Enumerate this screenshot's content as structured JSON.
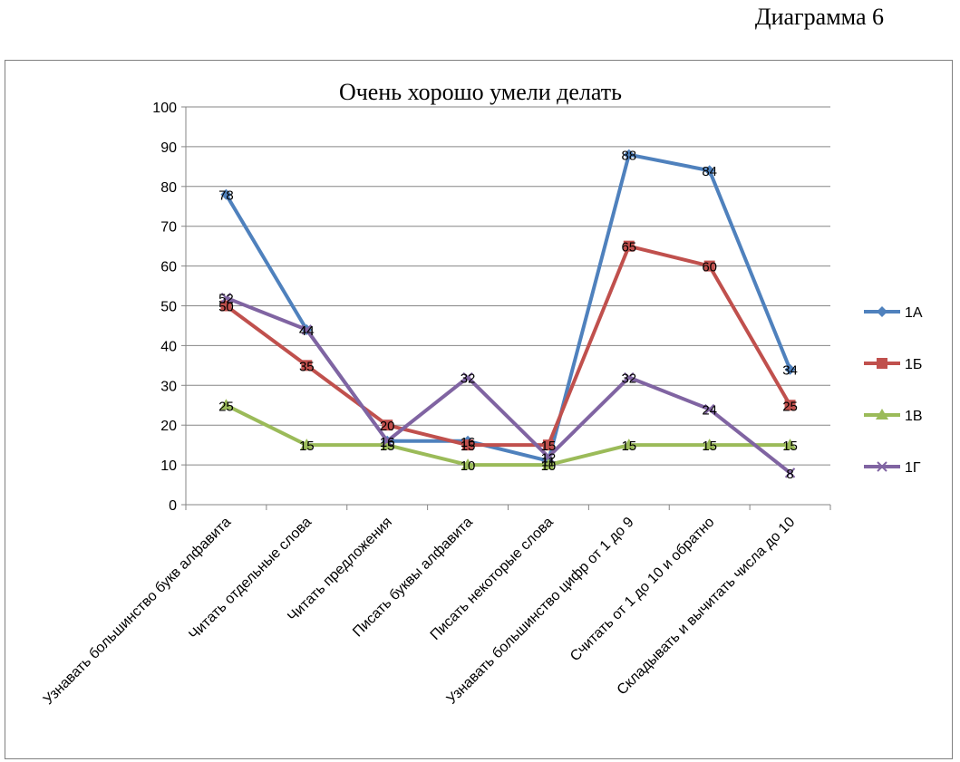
{
  "caption": "Диаграмма 6",
  "chart_data": {
    "type": "line",
    "title": "Очень хорошо умели делать",
    "categories": [
      "Узнавать большинство букв алфавита",
      "Читать отдельные слова",
      "Читать предложения",
      "Писать буквы алфавита",
      "Писать некоторые слова",
      "Узнавать большинство цифр от 1 до 9",
      "Считать от 1 до 10 и обратно",
      "Складывать и вычитать числа до 10"
    ],
    "ylim": [
      0,
      100
    ],
    "yticks": [
      0,
      10,
      20,
      30,
      40,
      50,
      60,
      70,
      80,
      90,
      100
    ],
    "ytick_labels": [
      "0",
      "10",
      "20",
      "30",
      "40",
      "50",
      "60",
      "70",
      "80",
      "90",
      "100"
    ],
    "grid": true,
    "legend": "right",
    "series": [
      {
        "name": "1А",
        "values": [
          78,
          44,
          16,
          16,
          11,
          88,
          84,
          34
        ],
        "labels": [
          "78",
          "44",
          "16",
          "16",
          "11",
          "88",
          "84",
          "34"
        ],
        "color": "#4F81BD",
        "marker": "diamond"
      },
      {
        "name": "1Б",
        "values": [
          50,
          35,
          20,
          15,
          15,
          65,
          60,
          25
        ],
        "labels": [
          "50",
          "35",
          "20",
          "15",
          "15",
          "65",
          "60",
          "25"
        ],
        "color": "#C0504D",
        "marker": "square"
      },
      {
        "name": "1В",
        "values": [
          25,
          15,
          15,
          10,
          10,
          15,
          15,
          15
        ],
        "labels": [
          "25",
          "15",
          "15",
          "10",
          "10",
          "15",
          "15",
          "15"
        ],
        "color": "#9BBB59",
        "marker": "triangle"
      },
      {
        "name": "1Г",
        "values": [
          52,
          44,
          16,
          32,
          12,
          32,
          24,
          8
        ],
        "labels": [
          "52",
          "44",
          "16",
          "32",
          "12",
          "32",
          "24",
          "8"
        ],
        "color": "#8064A2",
        "marker": "x"
      }
    ]
  }
}
